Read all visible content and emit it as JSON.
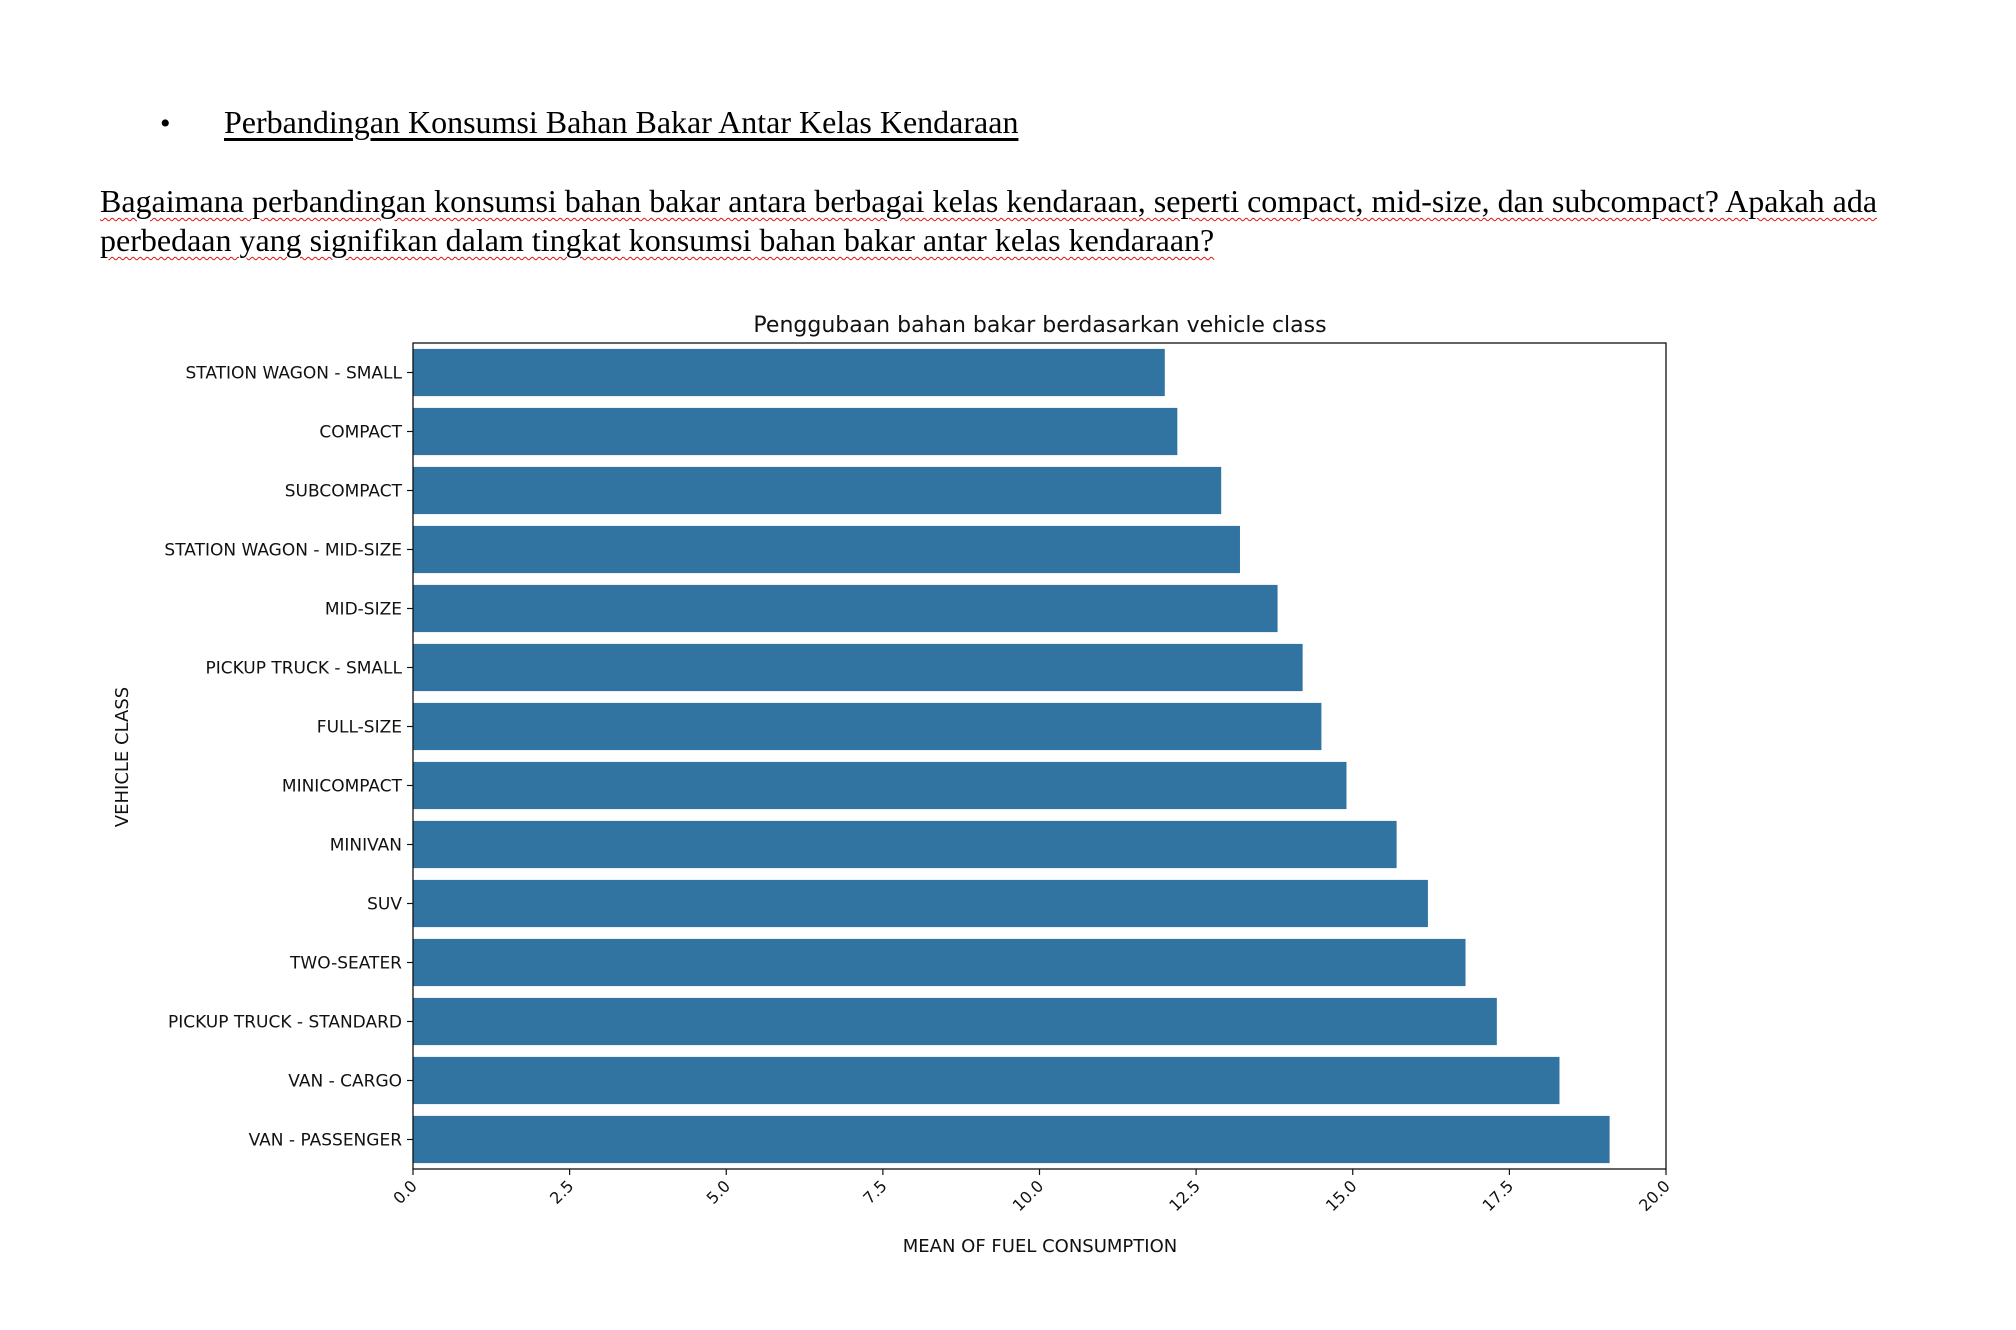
{
  "document": {
    "bullet_symbol": "•",
    "heading": "Perbandingan Konsumsi Bahan Bakar Antar Kelas Kendaraan",
    "question": "Bagaimana perbandingan konsumsi bahan bakar antara berbagai kelas kendaraan, seperti compact, mid-size, dan subcompact? Apakah ada perbedaan yang signifikan dalam tingkat konsumsi bahan bakar antar kelas kendaraan?"
  },
  "chart_data": {
    "type": "bar",
    "orientation": "horizontal",
    "title": "Penggubaan bahan bakar berdasarkan vehicle class",
    "xlabel": "MEAN OF FUEL CONSUMPTION",
    "ylabel": "VEHICLE CLASS",
    "xlim": [
      0,
      20
    ],
    "xticks": [
      "0.0",
      "2.5",
      "5.0",
      "7.5",
      "10.0",
      "12.5",
      "15.0",
      "17.5",
      "20.0"
    ],
    "bar_color": "#3274a1",
    "grid": false,
    "categories": [
      "STATION WAGON - SMALL",
      "COMPACT",
      "SUBCOMPACT",
      "STATION WAGON - MID-SIZE",
      "MID-SIZE",
      "PICKUP TRUCK - SMALL",
      "FULL-SIZE",
      "MINICOMPACT",
      "MINIVAN",
      "SUV",
      "TWO-SEATER",
      "PICKUP TRUCK - STANDARD",
      "VAN - CARGO",
      "VAN - PASSENGER"
    ],
    "values": [
      12.0,
      12.2,
      12.9,
      13.2,
      13.8,
      14.2,
      14.5,
      14.9,
      15.7,
      16.2,
      16.8,
      17.3,
      18.3,
      19.1
    ]
  }
}
